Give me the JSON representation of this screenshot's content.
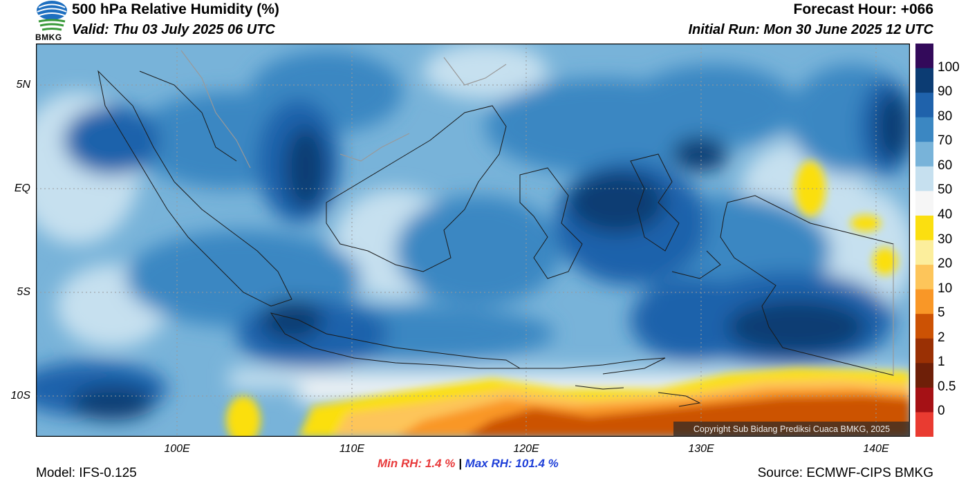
{
  "header": {
    "title": "500 hPa Relative Humidity (%)",
    "valid": "Valid: Thu 03 July 2025 06 UTC",
    "forecast_hour": "Forecast Hour: +066",
    "initial_run": "Initial Run: Mon 30 June 2025 12 UTC"
  },
  "logo": {
    "text": "BMKG"
  },
  "map": {
    "lat_labels": [
      "5N",
      "EQ",
      "5S",
      "10S"
    ],
    "lon_labels": [
      "100E",
      "110E",
      "120E",
      "130E",
      "140E"
    ],
    "copyright": "Copyright Sub Bidang Prediksi Cuaca BMKG, 2025"
  },
  "colorbar": {
    "labels": [
      "100",
      "90",
      "80",
      "70",
      "60",
      "50",
      "40",
      "30",
      "20",
      "10",
      "5",
      "2",
      "1",
      "0.5",
      "0"
    ],
    "colors": [
      "#330a5a",
      "#0c3c73",
      "#1f62ab",
      "#3b87c2",
      "#78b3d9",
      "#c6e0ef",
      "#f6f6f6",
      "#fbdf10",
      "#fcee9c",
      "#fdc55a",
      "#f99727",
      "#cc5204",
      "#9a3004",
      "#6e1f08",
      "#a51115",
      "#e93b31"
    ]
  },
  "stats": {
    "min_label": "Min RH:",
    "min_value": "1.4 %",
    "separator": "|",
    "max_label": "Max RH:",
    "max_value": "101.4 %"
  },
  "footer": {
    "model": "Model: IFS-0.125",
    "source": "Source: ECMWF-CIPS BMKG"
  }
}
